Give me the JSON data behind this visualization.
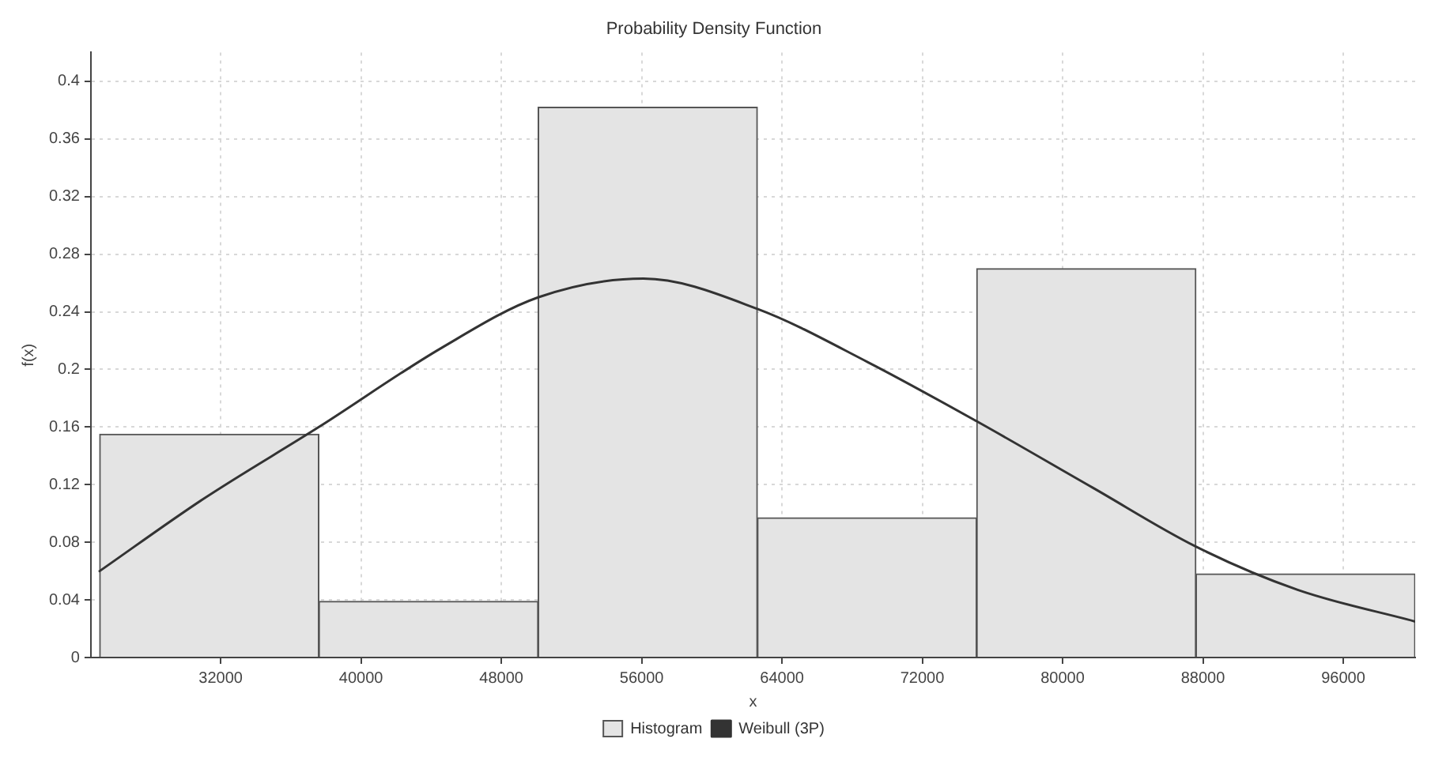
{
  "chart_data": {
    "type": "histogram",
    "title": "Probability Density Function",
    "xlabel": "x",
    "ylabel": "f(x)",
    "series": [
      {
        "name": "Histogram",
        "color": "#e4e4e4",
        "bins": [
          25100,
          37600,
          50100,
          62600,
          75100,
          87600,
          100100
        ],
        "values": [
          0.155,
          0.039,
          0.382,
          0.097,
          0.27,
          0.058
        ]
      },
      {
        "name": "Weibull (3P)",
        "type": "line",
        "color": "#333333",
        "x": [
          25100,
          31000,
          37600,
          44600,
          50100,
          56100,
          62600,
          68900,
          75100,
          81700,
          87600,
          93400,
          100100
        ],
        "values": [
          0.06,
          0.11,
          0.16,
          0.215,
          0.25,
          0.263,
          0.242,
          0.205,
          0.164,
          0.118,
          0.077,
          0.047,
          0.025
        ]
      }
    ],
    "xlim": [
      24600,
      100100
    ],
    "xticks": [
      32000,
      40000,
      48000,
      56000,
      64000,
      72000,
      80000,
      88000,
      96000
    ],
    "ylim": [
      0,
      0.42
    ],
    "yticks": [
      0,
      0.04,
      0.08,
      0.12,
      0.16,
      0.2,
      0.24,
      0.28,
      0.32,
      0.36,
      0.4
    ],
    "grid": true,
    "legend": "bottom",
    "marker": "none"
  }
}
